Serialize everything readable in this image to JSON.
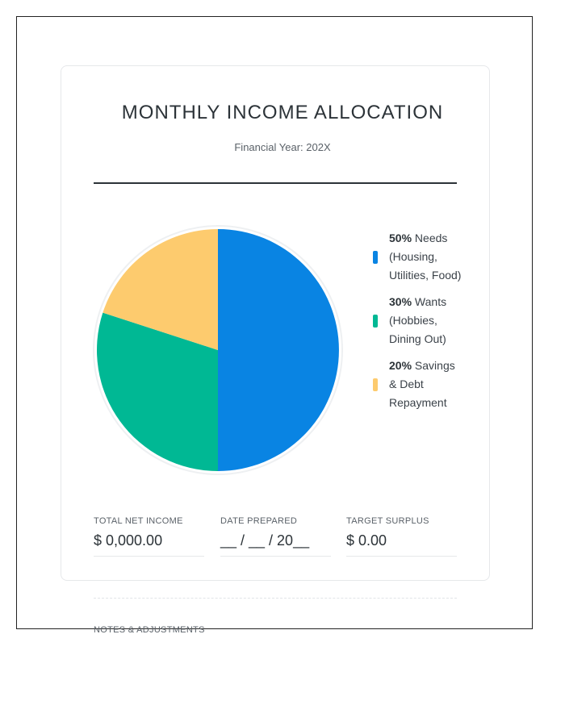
{
  "header": {
    "title": "MONTHLY INCOME ALLOCATION",
    "subtitle": "Financial Year: 202X"
  },
  "chart_data": {
    "type": "pie",
    "slices": [
      {
        "percent_label": "50%",
        "label": "Needs (Housing, Utilities, Food)",
        "value": 50,
        "color": "#0984e3"
      },
      {
        "percent_label": "30%",
        "label": "Wants (Hobbies, Dining Out)",
        "value": 30,
        "color": "#00b894"
      },
      {
        "percent_label": "20%",
        "label": "Savings & Debt Repayment",
        "value": 20,
        "color": "#fdcb6e"
      }
    ],
    "legend_position": "right"
  },
  "fields": [
    {
      "label": "TOTAL NET INCOME",
      "value": "$ 0,000.00"
    },
    {
      "label": "DATE PREPARED",
      "value": "__ / __ / 20__"
    },
    {
      "label": "TARGET SURPLUS",
      "value": "$ 0.00"
    }
  ],
  "notes": {
    "label": "NOTES & ADJUSTMENTS"
  }
}
